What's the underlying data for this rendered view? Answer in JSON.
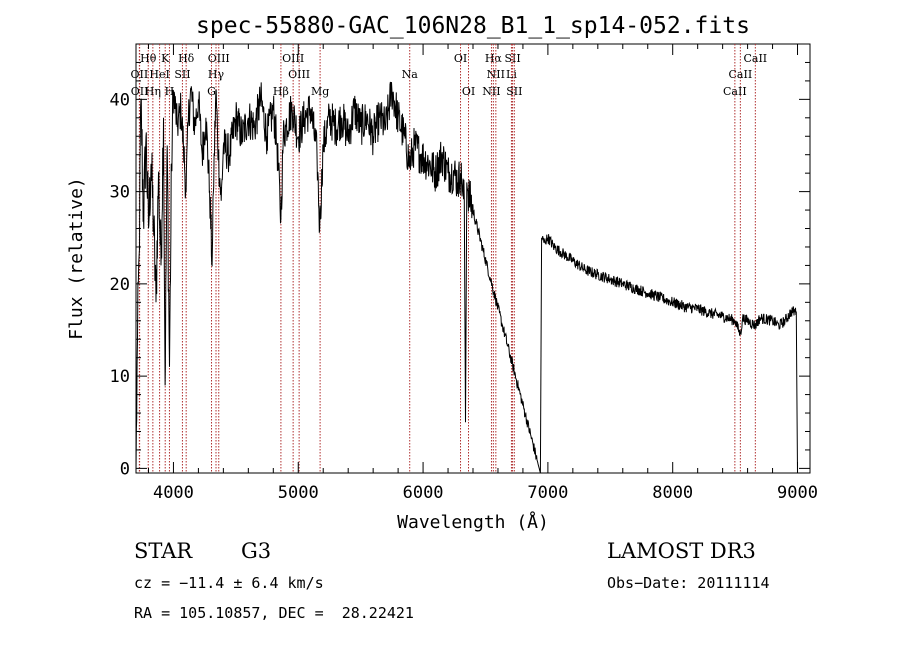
{
  "chart_data": {
    "type": "line",
    "title": "spec-55880-GAC_106N28_B1_1_sp14-052.fits",
    "xlabel": "Wavelength (Å)",
    "ylabel": "Flux (relative)",
    "xlim": [
      3700,
      9100
    ],
    "ylim": [
      -0.5,
      46
    ],
    "x_ticks": [
      4000,
      5000,
      6000,
      7000,
      8000,
      9000
    ],
    "y_ticks": [
      0,
      10,
      20,
      30,
      40
    ],
    "line_color": "#000000",
    "marker_color": "#b03030",
    "series": [
      {
        "name": "spectrum",
        "x": [
          3700,
          3712,
          3725,
          3740,
          3760,
          3780,
          3800,
          3820,
          3840,
          3860,
          3880,
          3900,
          3920,
          3933,
          3950,
          3968,
          3985,
          4000,
          4030,
          4060,
          4080,
          4101,
          4120,
          4140,
          4170,
          4200,
          4230,
          4260,
          4290,
          4310,
          4320,
          4340,
          4360,
          4383,
          4400,
          4450,
          4500,
          4550,
          4600,
          4650,
          4700,
          4750,
          4800,
          4830,
          4861,
          4880,
          4900,
          4950,
          5000,
          5050,
          5100,
          5150,
          5172,
          5200,
          5250,
          5300,
          5350,
          5400,
          5450,
          5500,
          5550,
          5600,
          5650,
          5700,
          5750,
          5800,
          5850,
          5893,
          5930,
          5980,
          6050,
          6100,
          6150,
          6200,
          6250,
          6280,
          6300,
          6330,
          6340,
          6350,
          6360,
          6940,
          6950,
          6970,
          7000,
          7050,
          7100,
          7200,
          7300,
          7400,
          7500,
          7600,
          7700,
          7800,
          7900,
          8000,
          8100,
          8200,
          8300,
          8400,
          8500,
          8542,
          8560,
          8600,
          8662,
          8700,
          8800,
          8850,
          8900,
          8950,
          8990,
          9000
        ],
        "y": [
          -0.5,
          14,
          23,
          40,
          27,
          36,
          26,
          33,
          27,
          18,
          32,
          22,
          38,
          9,
          35,
          11,
          33,
          41,
          37,
          39,
          35,
          30,
          38,
          41,
          37,
          40,
          34,
          38,
          30,
          22,
          30,
          41,
          34,
          29,
          35,
          34,
          38,
          36,
          38,
          37,
          40,
          36,
          39,
          35,
          27,
          36,
          37,
          39,
          36,
          38,
          39,
          34,
          26,
          35,
          38,
          37,
          38,
          36,
          39,
          37,
          38,
          36,
          38,
          37,
          41,
          38,
          36,
          33,
          35,
          34,
          33,
          32,
          34,
          32,
          32,
          31,
          32,
          29,
          5,
          31,
          30,
          -0.5,
          25,
          24.5,
          25,
          24,
          23.5,
          22.5,
          21.5,
          21,
          20.5,
          20,
          19.5,
          19,
          18.5,
          18,
          17.5,
          17.3,
          16.8,
          16.5,
          16,
          14.5,
          16.3,
          16,
          15.5,
          16.3,
          16,
          15.5,
          16,
          17,
          17,
          -0.5
        ]
      }
    ],
    "line_markers": [
      {
        "label": "Hθ",
        "x": 3798,
        "tier": 0
      },
      {
        "label": "K",
        "x": 3934,
        "tier": 0
      },
      {
        "label": "Hδ",
        "x": 4102,
        "tier": 0
      },
      {
        "label": "OIII",
        "x": 4363,
        "tier": 0
      },
      {
        "label": "OIII",
        "x": 4959,
        "tier": 0
      },
      {
        "label": "OI",
        "x": 6300,
        "tier": 0
      },
      {
        "label": "Hα",
        "x": 6563,
        "tier": 0
      },
      {
        "label": "SII",
        "x": 6717,
        "tier": 0
      },
      {
        "label": "CaII",
        "x": 8662,
        "tier": 0
      },
      {
        "label": "OII",
        "x": 3727,
        "tier": 1
      },
      {
        "label": "HeI",
        "x": 3889,
        "tier": 1
      },
      {
        "label": "SII",
        "x": 4072,
        "tier": 1
      },
      {
        "label": "Hγ",
        "x": 4341,
        "tier": 1
      },
      {
        "label": "OIII",
        "x": 5007,
        "tier": 1
      },
      {
        "label": "Na",
        "x": 5893,
        "tier": 1
      },
      {
        "label": "NII",
        "x": 6583,
        "tier": 1
      },
      {
        "label": "Li",
        "x": 6708,
        "tier": 1
      },
      {
        "label": "CaII",
        "x": 8542,
        "tier": 1
      },
      {
        "label": "OII",
        "x": 3729,
        "tier": 2
      },
      {
        "label": "Hη",
        "x": 3835,
        "tier": 2
      },
      {
        "label": "H",
        "x": 3968,
        "tier": 2
      },
      {
        "label": "G",
        "x": 4305,
        "tier": 2
      },
      {
        "label": "Hβ",
        "x": 4861,
        "tier": 2
      },
      {
        "label": "Mg",
        "x": 5175,
        "tier": 2
      },
      {
        "label": "OI",
        "x": 6364,
        "tier": 2
      },
      {
        "label": "NII",
        "x": 6548,
        "tier": 2
      },
      {
        "label": "SII",
        "x": 6731,
        "tier": 2
      },
      {
        "label": "CaII",
        "x": 8498,
        "tier": 2
      }
    ]
  },
  "info": {
    "object_class": "STAR",
    "subclass": "G3",
    "survey": "LAMOST DR3",
    "redshift": "cz = −11.4 ± 6.4 km/s",
    "obs_date": "Obs−Date: 20111114",
    "coords": "RA = 105.10857, DEC =  28.22421"
  }
}
